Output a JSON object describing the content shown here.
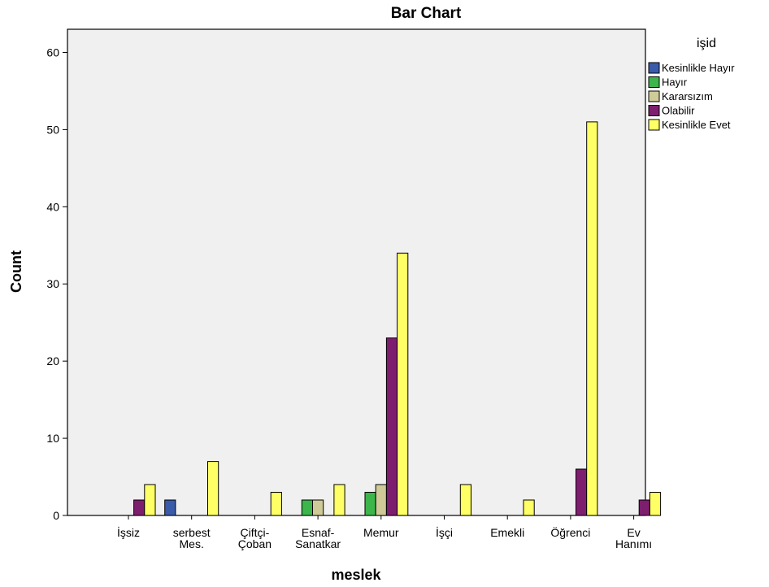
{
  "chart_data": {
    "type": "bar",
    "title": "Bar Chart",
    "xlabel": "meslek",
    "ylabel": "Count",
    "ylim": [
      0,
      63
    ],
    "yticks": [
      0,
      10,
      20,
      30,
      40,
      50,
      60
    ],
    "grid": false,
    "legend": {
      "title": "işid",
      "placement": "right"
    },
    "categories": [
      [
        "İşsiz"
      ],
      [
        "serbest",
        "Mes."
      ],
      [
        "Çiftçi-",
        "Çoban"
      ],
      [
        "Esnaf-",
        "Sanatkar"
      ],
      [
        "Memur"
      ],
      [
        "İşçi"
      ],
      [
        "Emekli"
      ],
      [
        "Öğrenci"
      ],
      [
        "Ev",
        "Hanımı"
      ]
    ],
    "series": [
      {
        "name": "Kesinlikle Hayır",
        "color": "#3A5BA9",
        "values": [
          0,
          2,
          0,
          0,
          0,
          0,
          0,
          0,
          0
        ]
      },
      {
        "name": "Hayır",
        "color": "#3CB54A",
        "values": [
          0,
          0,
          0,
          2,
          3,
          0,
          0,
          0,
          0
        ]
      },
      {
        "name": "Kararsızım",
        "color": "#CFCB98",
        "values": [
          0,
          0,
          0,
          2,
          4,
          0,
          0,
          0,
          0
        ]
      },
      {
        "name": "Olabilir",
        "color": "#7E1E6F",
        "values": [
          2,
          0,
          0,
          0,
          23,
          0,
          0,
          6,
          2
        ]
      },
      {
        "name": "Kesinlikle Evet",
        "color": "#FFFF66",
        "values": [
          4,
          7,
          3,
          4,
          34,
          4,
          2,
          51,
          3
        ]
      }
    ],
    "plot_background": "#F0F0F0"
  }
}
